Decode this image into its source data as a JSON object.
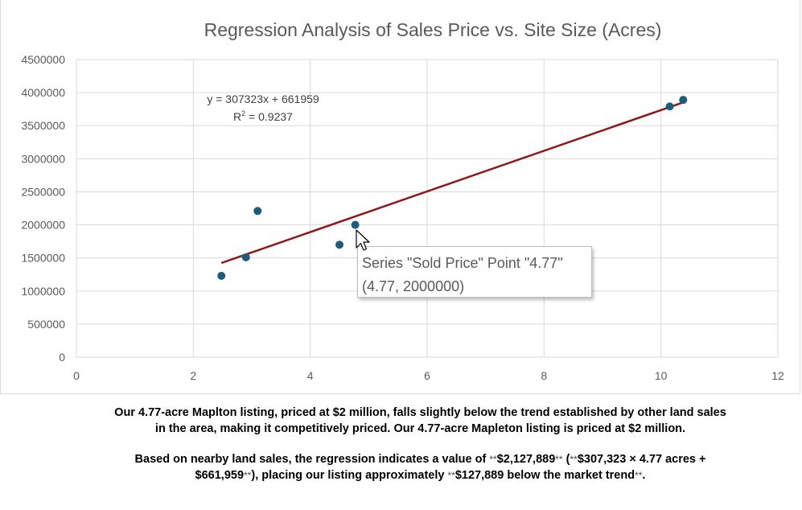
{
  "chart_data": {
    "type": "scatter",
    "title": "Regression Analysis of Sales Price vs. Site Size (Acres)",
    "xlim": [
      0,
      12
    ],
    "ylim": [
      0,
      4500000
    ],
    "x_ticks": [
      "0",
      "2",
      "4",
      "6",
      "8",
      "10",
      "12"
    ],
    "y_ticks": [
      "0",
      "500000",
      "1000000",
      "1500000",
      "2000000",
      "2500000",
      "3000000",
      "3500000",
      "4000000",
      "4500000"
    ],
    "grid": true,
    "series": [
      {
        "name": "Sold Price",
        "color": "#1f5c7a",
        "points": [
          {
            "x": 2.48,
            "y": 1230000
          },
          {
            "x": 2.9,
            "y": 1510000
          },
          {
            "x": 3.1,
            "y": 2210000
          },
          {
            "x": 4.5,
            "y": 1700000
          },
          {
            "x": 4.77,
            "y": 2000000
          },
          {
            "x": 10.15,
            "y": 3790000
          },
          {
            "x": 10.38,
            "y": 3890000
          }
        ]
      }
    ],
    "trendline": {
      "type": "linear",
      "slope": 307323,
      "intercept": 661959,
      "x_range": [
        2.48,
        10.38
      ],
      "color": "#8b1a1a",
      "equation_label": "y = 307323x + 661959",
      "r2_prefix": "R",
      "r2_sup": "2",
      "r2_value": " = 0.9237"
    }
  },
  "tooltip": {
    "line1": "Series \"Sold Price\" Point \"4.77\"",
    "line2": "(4.77, 2000000)"
  },
  "caption": {
    "p1_line1": "Our 4.77-acre Maplton listing, priced at $2 million, falls slightly below the trend established by other land sales",
    "p1_line2": "in the area, making it competitively priced. Our 4.77-acre Mapleton listing is priced at $2 million.",
    "p2_a": "Based on nearby land sales, the regression indicates a value of ",
    "p2_stars1": "**",
    "p2_b": "$2,127,889",
    "p2_stars2": "**",
    "p2_c": " (",
    "p2_stars3": "**",
    "p2_d": "$307,323 × 4.77 acres +",
    "p2_e": "$661,959",
    "p2_stars4": "**",
    "p2_f": "), placing our listing approximately ",
    "p2_stars5": "**",
    "p2_g": "$127,889 below the market trend",
    "p2_stars6": "**",
    "p2_h": "."
  }
}
